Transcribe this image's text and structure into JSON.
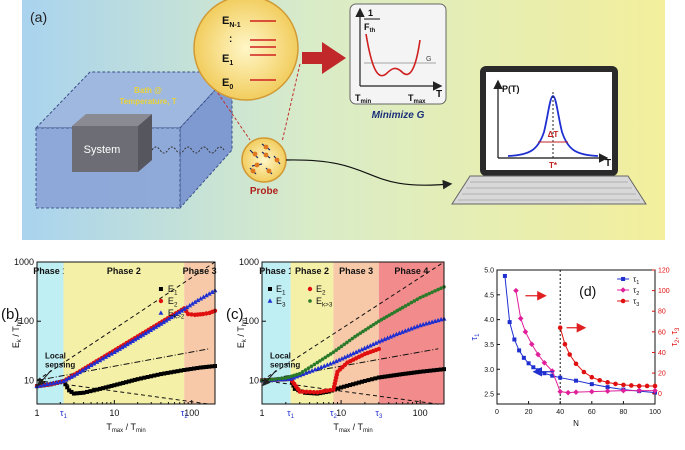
{
  "panel_a": {
    "label": "(a)",
    "bath_line1": "Bath @",
    "bath_line2": "Temperature, T",
    "system_label": "System",
    "probe_label": "Probe",
    "levels": {
      "top": "E",
      "top_sub": "N-1",
      "dots": ":",
      "mid": "E",
      "mid_sub": "1",
      "bottom": "E",
      "bottom_sub": "0"
    },
    "fth_plot": {
      "num": "1",
      "den": "F",
      "den_sub": "th",
      "g_label": "G",
      "x_label": "T",
      "tmin": "T",
      "tmin_sub": "min",
      "tmax": "T",
      "tmax_sub": "max"
    },
    "minimize_label": "Minimize G",
    "laptop_plot": {
      "y_label": "P(T)",
      "x_label": "T",
      "delta_label": "ΔT",
      "tstar_label": "T*"
    }
  },
  "colors": {
    "phase1": "#bfeef3",
    "phase2": "#f5f0a8",
    "phase3": "#f7c9a8",
    "phase4": "#f28c8c",
    "arrow_red": "#c0282a",
    "e1": "#000000",
    "e2": "#e01010",
    "e3": "#1f2fd0",
    "ek": "#2a7a2a"
  },
  "chart_data": [
    {
      "type": "scatter",
      "panel": "(b)",
      "ylabel": "E_k / T_hm",
      "xlabel": "T_max / T_min",
      "x_scale": "log",
      "y_scale": "log",
      "xlim": [
        1,
        200
      ],
      "ylim": [
        4,
        1000
      ],
      "x_ticks": [
        "1",
        "10",
        "100"
      ],
      "x_marks": [
        "τ1",
        "τ2"
      ],
      "y_ticks": [
        "10",
        "100",
        "1000"
      ],
      "phases": [
        {
          "label": "Phase 1",
          "from": 1,
          "to": 2.2
        },
        {
          "label": "Phase 2",
          "from": 2.2,
          "to": 80
        },
        {
          "label": "Phase 3",
          "from": 80,
          "to": 200
        }
      ],
      "legend": [
        "E1",
        "E2",
        "Ek>2"
      ],
      "annotation": "Local sensing",
      "series": [
        {
          "name": "E1",
          "x": [
            1,
            1.5,
            2.2,
            2.6,
            3,
            4,
            6,
            10,
            20,
            40,
            80,
            130,
            200
          ],
          "y": [
            8,
            8.6,
            9.7,
            6.8,
            6.0,
            6.2,
            7.0,
            8.3,
            10.5,
            12.8,
            15,
            16.5,
            17.5
          ]
        },
        {
          "name": "E2",
          "x": [
            1,
            1.5,
            2.2,
            80,
            90,
            110,
            140,
            170,
            200
          ],
          "y": [
            8,
            8.6,
            9.7,
            165,
            132,
            128,
            132,
            138,
            150
          ]
        },
        {
          "name": "Ek>2",
          "x": [
            1,
            2.2,
            3,
            5,
            10,
            20,
            40,
            80,
            120,
            200
          ],
          "y": [
            8,
            9.7,
            12,
            18,
            30,
            52,
            90,
            160,
            225,
            330
          ]
        }
      ]
    },
    {
      "type": "scatter",
      "panel": "(c)",
      "ylabel": "E_k / T_hm",
      "xlabel": "T_max / T_min",
      "x_scale": "log",
      "y_scale": "log",
      "xlim": [
        1,
        200
      ],
      "ylim": [
        4,
        1000
      ],
      "x_ticks": [
        "1",
        "10",
        "100"
      ],
      "x_marks": [
        "τ1",
        "τ2",
        "τ3"
      ],
      "y_ticks": [
        "10",
        "100",
        "1000"
      ],
      "phases": [
        {
          "label": "Phase 1",
          "from": 1,
          "to": 2.3
        },
        {
          "label": "Phase 2",
          "from": 2.3,
          "to": 8
        },
        {
          "label": "Phase 3",
          "from": 8,
          "to": 30
        },
        {
          "label": "Phase 4",
          "from": 30,
          "to": 200
        }
      ],
      "legend": [
        "E1",
        "E2",
        "E3",
        "Ek>3"
      ],
      "annotation": "Local sensing",
      "series": [
        {
          "name": "E1",
          "x": [
            1,
            1.5,
            2.3,
            2.6,
            3.5,
            5,
            7,
            10,
            20,
            30,
            60,
            100,
            200
          ],
          "y": [
            10,
            10.3,
            10.6,
            7.2,
            6.2,
            6.0,
            6.5,
            7.6,
            9.8,
            11.2,
            12.8,
            14,
            15.5
          ]
        },
        {
          "name": "E2",
          "x": [
            1,
            1.5,
            2.3,
            3,
            5,
            8,
            9,
            12,
            20,
            30
          ],
          "y": [
            10,
            10.3,
            10.6,
            6.5,
            6.3,
            7.0,
            14,
            20,
            28,
            34
          ]
        },
        {
          "name": "E3",
          "x": [
            1,
            2.3,
            8,
            30,
            50,
            100,
            200
          ],
          "y": [
            10,
            10.6,
            20,
            45,
            60,
            85,
            110
          ]
        },
        {
          "name": "Ek>3",
          "x": [
            1,
            2,
            3,
            5,
            8,
            15,
            30,
            60,
            100,
            200
          ],
          "y": [
            10,
            11,
            13,
            20,
            30,
            55,
            100,
            170,
            250,
            380
          ]
        }
      ]
    },
    {
      "type": "line",
      "panel": "(d)",
      "xlabel": "N",
      "ylabel": "τ1",
      "y2label": "τ2, τ3",
      "xlim": [
        0,
        100
      ],
      "ylim": [
        2.3,
        5.0
      ],
      "y2lim": [
        -10,
        120
      ],
      "x_ticks": [
        "0",
        "20",
        "40",
        "60",
        "80",
        "100"
      ],
      "y_ticks": [
        "2.5",
        "3.0",
        "3.5",
        "4.0",
        "4.5",
        "5.0"
      ],
      "y2_ticks": [
        "0",
        "20",
        "40",
        "60",
        "80",
        "100",
        "120"
      ],
      "legend": [
        "τ1",
        "τ2",
        "τ3"
      ],
      "series": [
        {
          "name": "τ1",
          "axis": "left",
          "x": [
            5,
            8,
            11,
            14,
            17,
            20,
            23,
            26,
            30,
            35,
            40,
            50,
            60,
            70,
            80,
            90,
            100
          ],
          "y": [
            4.88,
            3.95,
            3.6,
            3.38,
            3.23,
            3.12,
            3.04,
            2.98,
            2.92,
            2.87,
            2.83,
            2.77,
            2.7,
            2.64,
            2.59,
            2.56,
            2.53
          ]
        },
        {
          "name": "τ2",
          "axis": "right",
          "x": [
            12,
            15,
            18,
            22,
            26,
            30,
            35,
            40,
            45,
            50,
            60,
            70,
            80,
            90,
            100
          ],
          "y": [
            100,
            73,
            60,
            48,
            38,
            30,
            22,
            2,
            1,
            1.5,
            2,
            2.5,
            3,
            3,
            3
          ]
        },
        {
          "name": "τ3",
          "axis": "right",
          "x": [
            40,
            43,
            46,
            50,
            55,
            60,
            65,
            70,
            75,
            80,
            85,
            90,
            95,
            100
          ],
          "y": [
            64,
            48,
            38,
            29,
            21,
            16,
            13,
            11,
            9.5,
            8.5,
            8,
            7.5,
            7.5,
            7.5
          ]
        }
      ]
    }
  ]
}
